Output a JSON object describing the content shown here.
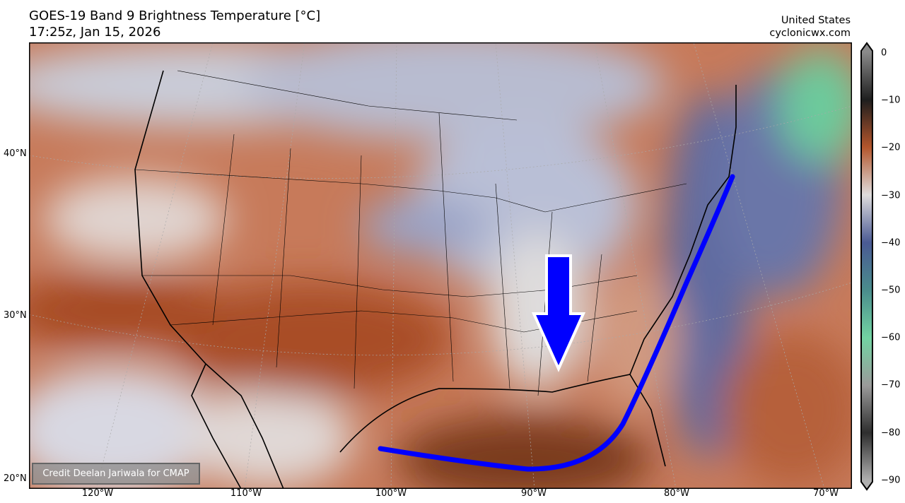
{
  "header": {
    "title": "GOES-19 Band 9 Brightness Temperature [°C]",
    "subtitle": "17:25z, Jan 15, 2026",
    "region": "United States",
    "site": "cyclonicwx.com"
  },
  "map": {
    "lat_labels": [
      "40°N",
      "30°N",
      "20°N"
    ],
    "lon_labels": [
      "120°W",
      "110°W",
      "100°W",
      "90°W",
      "80°W",
      "70°W"
    ],
    "credit": "Credit Deelan Jariwala for CMAP",
    "annotations": {
      "arrow_color": "#0000ff",
      "curve_color": "#0000ff",
      "arrow_direction": "down"
    }
  },
  "colorbar": {
    "ticks": [
      "0",
      "−10",
      "−20",
      "−30",
      "−40",
      "−50",
      "−60",
      "−70",
      "−80",
      "−90"
    ],
    "extend": "both",
    "colors": [
      "#8a8a8a",
      "#1e1e1e",
      "#b3552c",
      "#dedcdc",
      "#4a5a94",
      "#4a8c8c",
      "#72d3a2",
      "#9a9a9a",
      "#2e2e2e",
      "#b0b0b0"
    ]
  }
}
